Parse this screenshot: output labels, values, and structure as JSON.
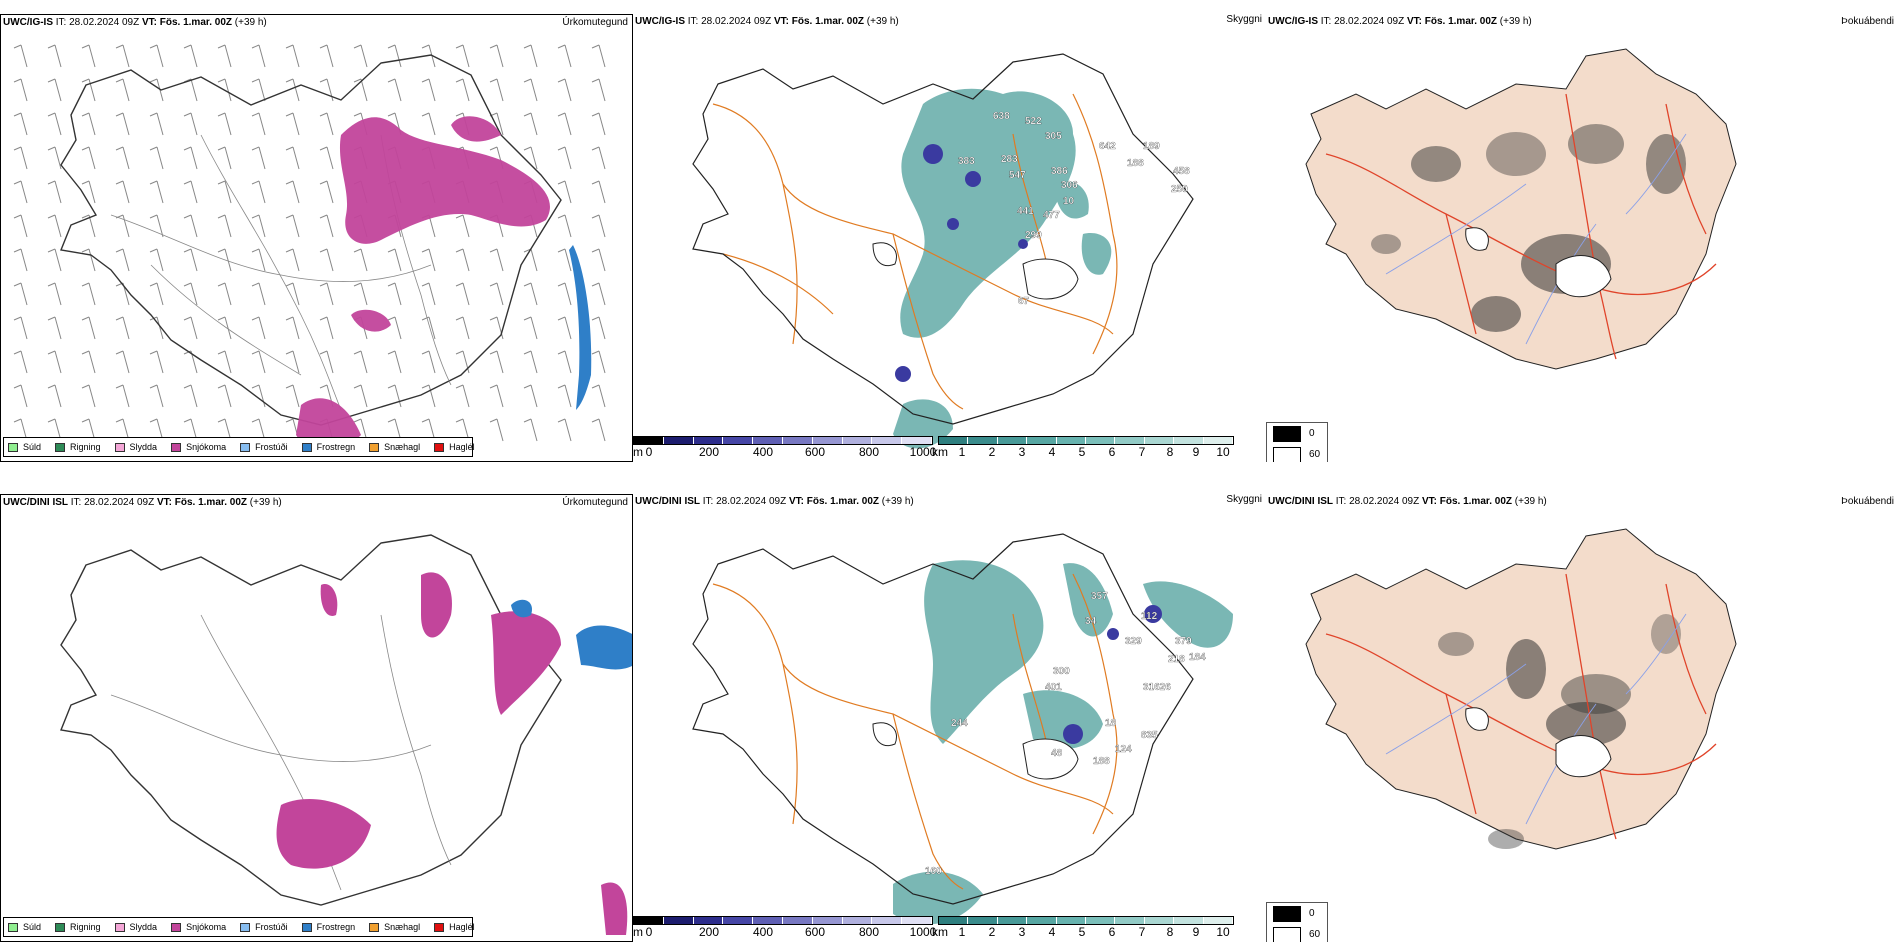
{
  "rows": [
    {
      "model": "UWC/IG-IS",
      "it_label": "IT:",
      "it": "28.02.2024 09Z",
      "vt_label": "VT:",
      "vt": "Fös. 1.mar. 00Z",
      "lead": "(+39 h)",
      "panels": [
        "Úrkomutegund",
        "Skyggni",
        "Þokuábendi"
      ],
      "cloud_labels": [
        "638",
        "522",
        "305",
        "642",
        "189",
        "383",
        "283",
        "386",
        "458",
        "188",
        "547",
        "306",
        "250",
        "441",
        "477",
        "299",
        "10",
        "67"
      ]
    },
    {
      "model": "UWC/DINI ISL",
      "it_label": "IT:",
      "it": "28.02.2024 09Z",
      "vt_label": "VT:",
      "vt": "Fös. 1.mar. 00Z",
      "lead": "(+39 h)",
      "panels": [
        "Úrkomutegund",
        "Skyggni",
        "Þokuábendi"
      ],
      "cloud_labels": [
        "357",
        "34",
        "112",
        "329",
        "379",
        "218",
        "184",
        "300",
        "401",
        "31626",
        "244",
        "18",
        "835",
        "48",
        "188",
        "124",
        "160"
      ]
    }
  ],
  "precip_legend": [
    {
      "label": "Súld",
      "color": "#90ee90"
    },
    {
      "label": "Rigning",
      "color": "#2e8b57"
    },
    {
      "label": "Slydda",
      "color": "#f4a6d7"
    },
    {
      "label": "Snjókoma",
      "color": "#c2459b"
    },
    {
      "label": "Frostúði",
      "color": "#87bdf0"
    },
    {
      "label": "Frostregn",
      "color": "#2f7fc8"
    },
    {
      "label": "Snæhagl",
      "color": "#f0a030"
    },
    {
      "label": "Haglél",
      "color": "#e01010"
    }
  ],
  "cloudbase_bar": {
    "unit": "m",
    "ticks": [
      "0",
      "200",
      "400",
      "600",
      "800",
      "1000"
    ],
    "colors": [
      "#000000",
      "#1c1c6e",
      "#2d2d8c",
      "#4646a6",
      "#5f5fb4",
      "#7878c2",
      "#9696d2",
      "#b0b0de",
      "#c8c8ea",
      "#e0e0f4"
    ]
  },
  "visibility_bar": {
    "unit": "km",
    "ticks": [
      "1",
      "2",
      "3",
      "4",
      "5",
      "6",
      "7",
      "8",
      "9",
      "10"
    ],
    "colors": [
      "#2e7f7f",
      "#3a8c8c",
      "#489a98",
      "#57a7a3",
      "#67b3af",
      "#7bbfba",
      "#92cbc6",
      "#aad7d2",
      "#c3e3df",
      "#deefec"
    ]
  },
  "fog_legend": [
    {
      "label": "0",
      "color": "#000000"
    },
    {
      "label": "60",
      "color": "#ffffff"
    }
  ]
}
